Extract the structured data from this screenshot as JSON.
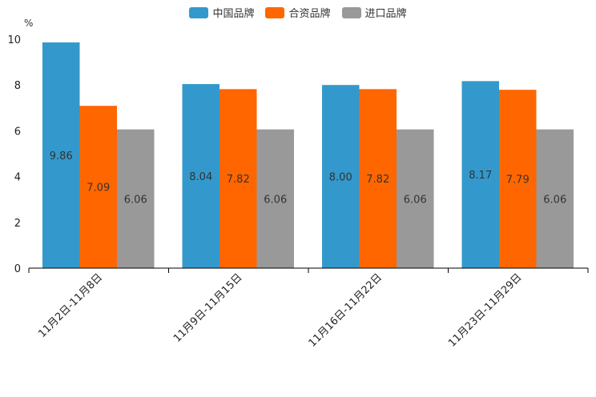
{
  "chart_data": {
    "type": "bar",
    "unit_label": "%",
    "categories": [
      "11月2日-11月8日",
      "11月9日-11月15日",
      "11月16日-11月22日",
      "11月23日-11月29日"
    ],
    "series": [
      {
        "name": "中国品牌",
        "color": "#3399cc",
        "values": [
          9.86,
          8.04,
          8.0,
          8.17
        ],
        "labels": [
          "9.86",
          "8.04",
          "8.00",
          "8.17"
        ]
      },
      {
        "name": "合资品牌",
        "color": "#ff6600",
        "values": [
          7.09,
          7.82,
          7.82,
          7.79
        ],
        "labels": [
          "7.09",
          "7.82",
          "7.82",
          "7.79"
        ]
      },
      {
        "name": "进口品牌",
        "color": "#999999",
        "values": [
          6.06,
          6.06,
          6.06,
          6.06
        ],
        "labels": [
          "6.06",
          "6.06",
          "6.06",
          "6.06"
        ]
      }
    ],
    "yticks": [
      "0",
      "2",
      "4",
      "6",
      "8",
      "10"
    ],
    "ylim": [
      0,
      10
    ],
    "legend_position": "top-center"
  }
}
